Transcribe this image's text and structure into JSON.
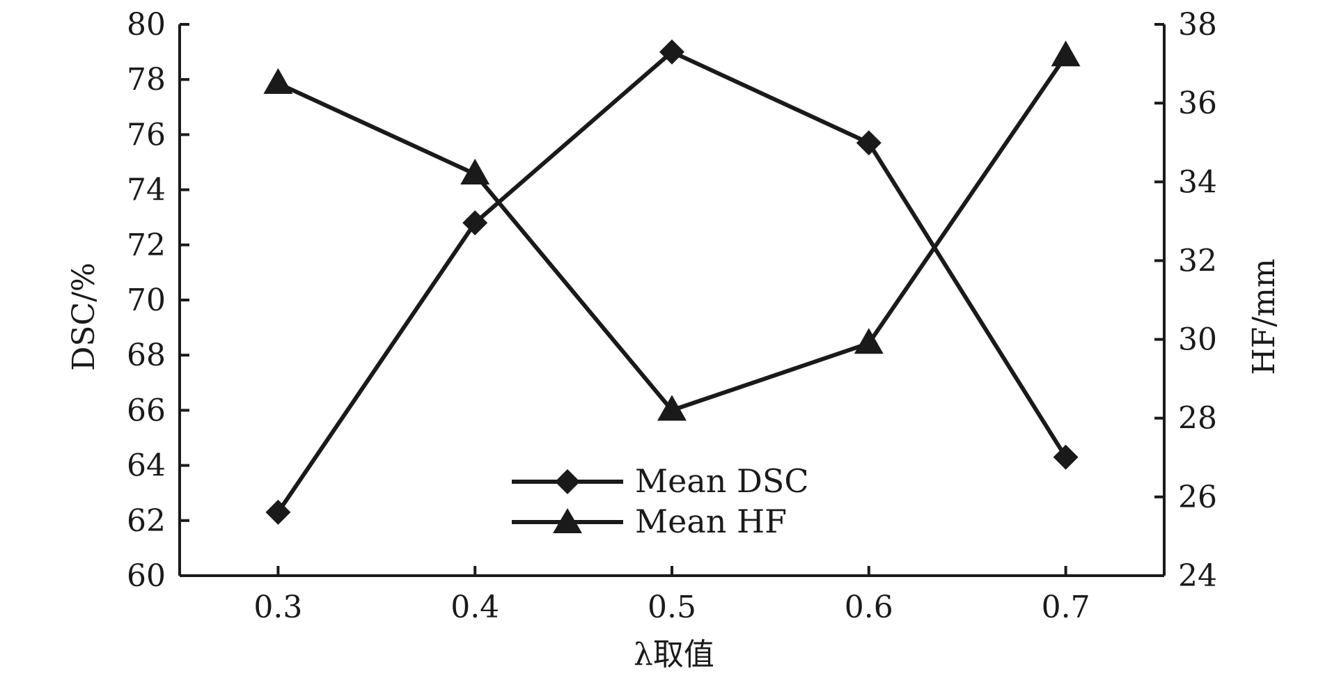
{
  "chart_data": {
    "type": "line",
    "title": "",
    "xlabel": "λ取值",
    "ylabel_left": "DSC/%",
    "ylabel_right": "HF/mm",
    "x": [
      0.3,
      0.4,
      0.5,
      0.6,
      0.7
    ],
    "x_tick_labels": [
      "0.3",
      "0.4",
      "0.5",
      "0.6",
      "0.7"
    ],
    "xlim": [
      0.25,
      0.75
    ],
    "ylim_left": [
      60,
      80
    ],
    "ylim_right": [
      24,
      38
    ],
    "y_ticks_left": [
      60,
      62,
      64,
      66,
      68,
      70,
      72,
      74,
      76,
      78,
      80
    ],
    "y_ticks_right": [
      24,
      26,
      28,
      30,
      32,
      34,
      36,
      38
    ],
    "grid": false,
    "legend_position": "bottom-center",
    "series": [
      {
        "name": "Mean DSC",
        "axis": "left",
        "marker": "diamond",
        "values": [
          62.3,
          72.8,
          79.0,
          75.7,
          64.3
        ]
      },
      {
        "name": "Mean HF",
        "axis": "right",
        "marker": "triangle",
        "values": [
          36.5,
          34.2,
          28.2,
          29.9,
          37.2
        ]
      }
    ],
    "line_color": "#1a1a1a"
  }
}
